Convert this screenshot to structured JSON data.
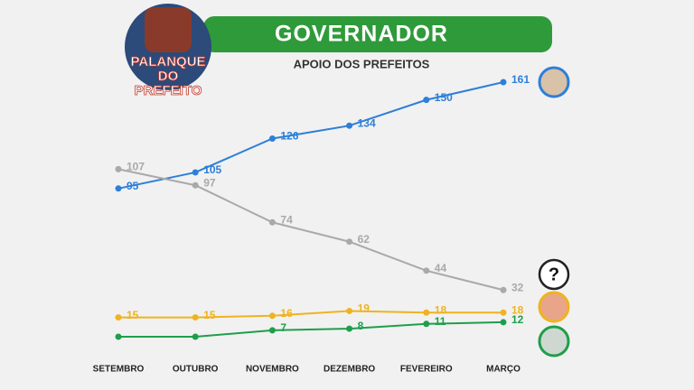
{
  "chart_data": {
    "type": "line",
    "title": "GOVERNADOR",
    "subtitle": "APOIO DOS PREFEITOS",
    "categories": [
      "SETEMBRO",
      "OUTUBRO",
      "NOVEMBRO",
      "DEZEMBRO",
      "FEVEREIRO",
      "MARÇO"
    ],
    "series": [
      {
        "color": "#2d7fd8",
        "values": [
          95,
          105,
          126,
          134,
          150,
          161
        ]
      },
      {
        "color": "#a9a9a9",
        "values": [
          107,
          97,
          74,
          62,
          44,
          32
        ]
      },
      {
        "color": "#efb321",
        "values": [
          15,
          15,
          16,
          19,
          18,
          18
        ]
      },
      {
        "color": "#1f9e4a",
        "values": [
          3,
          3,
          7,
          8,
          11,
          12
        ],
        "value_labels": [
          null,
          null,
          "7",
          "8",
          "11",
          "12"
        ]
      }
    ]
  },
  "logo": {
    "lines": [
      "PALANQUE",
      "DO",
      "PREFEITO"
    ]
  },
  "badge": "?"
}
